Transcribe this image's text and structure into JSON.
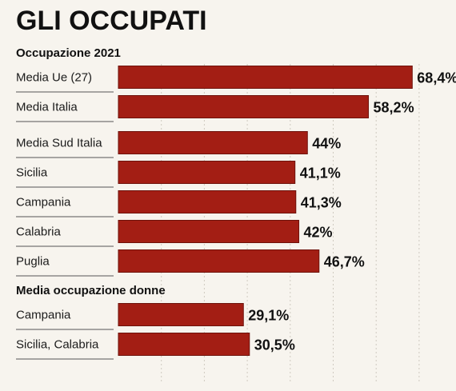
{
  "chart_data": {
    "type": "bar",
    "title": "GLI OCCUPATI",
    "xlim": [
      0,
      80
    ],
    "grid": true,
    "bar_color": "#a31e14",
    "sections": [
      {
        "heading": "Occupazione 2021",
        "categories": [
          "Media Ue (27)",
          "Media Italia"
        ],
        "values": [
          68.4,
          58.2
        ],
        "labels": [
          "68,4%",
          "58,2%"
        ]
      },
      {
        "heading": "",
        "categories": [
          "Media Sud Italia",
          "Sicilia",
          "Campania",
          "Calabria",
          "Puglia"
        ],
        "values": [
          44,
          41.1,
          41.3,
          42,
          46.7
        ],
        "labels": [
          "44%",
          "41,1%",
          "41,3%",
          "42%",
          "46,7%"
        ]
      },
      {
        "heading": "Media occupazione donne",
        "categories": [
          "Campania",
          "Sicilia, Calabria"
        ],
        "values": [
          29.1,
          30.5
        ],
        "labels": [
          "29,1%",
          "30,5%"
        ]
      }
    ]
  }
}
